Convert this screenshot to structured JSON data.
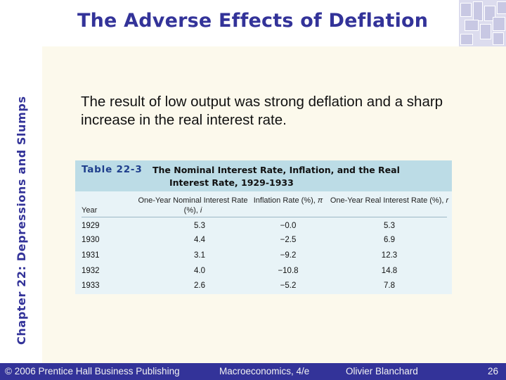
{
  "slide": {
    "title": "The Adverse Effects of Deflation",
    "side_label": "Chapter 22: Depressions and Slumps",
    "intro": "The result of low output was strong deflation and a sharp increase in the real interest rate."
  },
  "table": {
    "number": "Table 22-3",
    "title_line1": "The Nominal Interest Rate, Inflation, and the Real",
    "title_line2": "Interest Rate, 1929-1933",
    "columns": [
      {
        "label": "Year",
        "var": ""
      },
      {
        "label": "One-Year Nominal Interest Rate (%),",
        "var": "i"
      },
      {
        "label": "Inflation Rate (%),",
        "var": "π"
      },
      {
        "label": "One-Year Real Interest Rate (%),",
        "var": "r"
      }
    ],
    "rows": [
      {
        "year": "1929",
        "nominal": "5.3",
        "inflation": "−0.0",
        "real": "5.3"
      },
      {
        "year": "1930",
        "nominal": "4.4",
        "inflation": "−2.5",
        "real": "6.9"
      },
      {
        "year": "1931",
        "nominal": "3.1",
        "inflation": "−9.2",
        "real": "12.3"
      },
      {
        "year": "1932",
        "nominal": "4.0",
        "inflation": "−10.8",
        "real": "14.8"
      },
      {
        "year": "1933",
        "nominal": "2.6",
        "inflation": "−5.2",
        "real": "7.8"
      }
    ]
  },
  "footer": {
    "copyright": "© 2006 Prentice Hall Business Publishing",
    "book": "Macroeconomics, 4/e",
    "author": "Olivier Blanchard",
    "page_number": "26"
  },
  "colors": {
    "title": "#333399",
    "footer_bar": "#333399",
    "table_header": "#bcdce6",
    "table_body": "#e8f3f7",
    "content_panel": "#fcf9ec"
  }
}
